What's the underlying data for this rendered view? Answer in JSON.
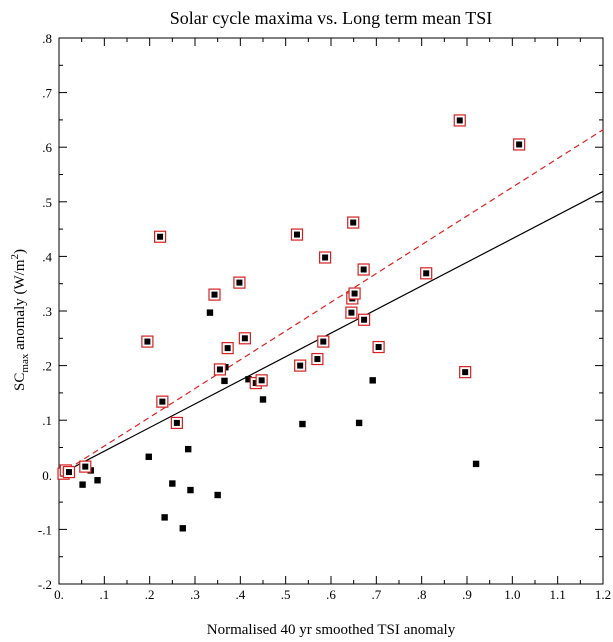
{
  "chart_data": {
    "type": "scatter",
    "title": "Solar cycle maxima vs. Long term mean TSI",
    "xlabel": "Normalised 40 yr smoothed TSI anomaly",
    "ylabel_main": "SC",
    "ylabel_sub": "max",
    "ylabel_rest": " anomaly (W/m",
    "ylabel_sup": "2",
    "ylabel_end": ")",
    "xlim": [
      0,
      1.2
    ],
    "ylim": [
      -0.2,
      0.8
    ],
    "x_ticks": [
      {
        "value": 0,
        "label": "0."
      },
      {
        "value": 0.1,
        "label": ".1"
      },
      {
        "value": 0.2,
        "label": ".2"
      },
      {
        "value": 0.3,
        "label": ".3"
      },
      {
        "value": 0.4,
        "label": ".4"
      },
      {
        "value": 0.5,
        "label": ".5"
      },
      {
        "value": 0.6,
        "label": ".6"
      },
      {
        "value": 0.7,
        "label": ".7"
      },
      {
        "value": 0.8,
        "label": ".8"
      },
      {
        "value": 0.9,
        "label": ".9"
      },
      {
        "value": 1.0,
        "label": "1.0"
      },
      {
        "value": 1.1,
        "label": "1.1"
      },
      {
        "value": 1.2,
        "label": "1.2"
      }
    ],
    "y_ticks": [
      {
        "value": -0.2,
        "label": "-.2"
      },
      {
        "value": -0.1,
        "label": "-.1"
      },
      {
        "value": 0,
        "label": "0."
      },
      {
        "value": 0.1,
        "label": ".1"
      },
      {
        "value": 0.2,
        "label": ".2"
      },
      {
        "value": 0.3,
        "label": ".3"
      },
      {
        "value": 0.4,
        "label": ".4"
      },
      {
        "value": 0.5,
        "label": ".5"
      },
      {
        "value": 0.6,
        "label": ".6"
      },
      {
        "value": 0.7,
        "label": ".7"
      },
      {
        "value": 0.8,
        "label": ".8"
      }
    ],
    "grid": false,
    "series": [
      {
        "marker": "square-black",
        "color": "#000000",
        "points": [
          [
            0.01,
            0.005
          ],
          [
            0.015,
            0.0
          ],
          [
            0.02,
            0.003
          ],
          [
            0.052,
            -0.018
          ],
          [
            0.07,
            0.008
          ],
          [
            0.085,
            -0.01
          ],
          [
            0.198,
            0.033
          ],
          [
            0.233,
            -0.078
          ],
          [
            0.25,
            -0.016
          ],
          [
            0.273,
            -0.098
          ],
          [
            0.285,
            0.047
          ],
          [
            0.29,
            -0.028
          ],
          [
            0.333,
            0.297
          ],
          [
            0.35,
            -0.037
          ],
          [
            0.365,
            0.172
          ],
          [
            0.367,
            0.197
          ],
          [
            0.418,
            0.175
          ],
          [
            0.45,
            0.138
          ],
          [
            0.537,
            0.093
          ],
          [
            0.662,
            0.095
          ],
          [
            0.692,
            0.173
          ],
          [
            0.92,
            0.02
          ]
        ]
      },
      {
        "marker": "square-black-red-outline",
        "color": "#000000",
        "outline": "#d42020",
        "points": [
          [
            0.01,
            0.002
          ],
          [
            0.015,
            0.008
          ],
          [
            0.022,
            0.005
          ],
          [
            0.058,
            0.015
          ],
          [
            0.195,
            0.244
          ],
          [
            0.223,
            0.436
          ],
          [
            0.228,
            0.134
          ],
          [
            0.26,
            0.095
          ],
          [
            0.343,
            0.33
          ],
          [
            0.355,
            0.193
          ],
          [
            0.372,
            0.232
          ],
          [
            0.398,
            0.352
          ],
          [
            0.41,
            0.25
          ],
          [
            0.434,
            0.168
          ],
          [
            0.447,
            0.173
          ],
          [
            0.525,
            0.44
          ],
          [
            0.532,
            0.2
          ],
          [
            0.57,
            0.212
          ],
          [
            0.583,
            0.244
          ],
          [
            0.587,
            0.398
          ],
          [
            0.645,
            0.297
          ],
          [
            0.647,
            0.323
          ],
          [
            0.649,
            0.462
          ],
          [
            0.652,
            0.332
          ],
          [
            0.672,
            0.376
          ],
          [
            0.673,
            0.284
          ],
          [
            0.705,
            0.234
          ],
          [
            0.81,
            0.369
          ],
          [
            0.884,
            0.649
          ],
          [
            0.896,
            0.188
          ],
          [
            1.015,
            0.605
          ]
        ]
      }
    ],
    "fit_lines": [
      {
        "color": "#000000",
        "style": "solid",
        "x": [
          0,
          1.2
        ],
        "y": [
          0.0,
          0.519
        ]
      },
      {
        "color": "#e02020",
        "style": "dashed",
        "x": [
          0,
          1.2
        ],
        "y": [
          0.0,
          0.632
        ]
      }
    ]
  }
}
